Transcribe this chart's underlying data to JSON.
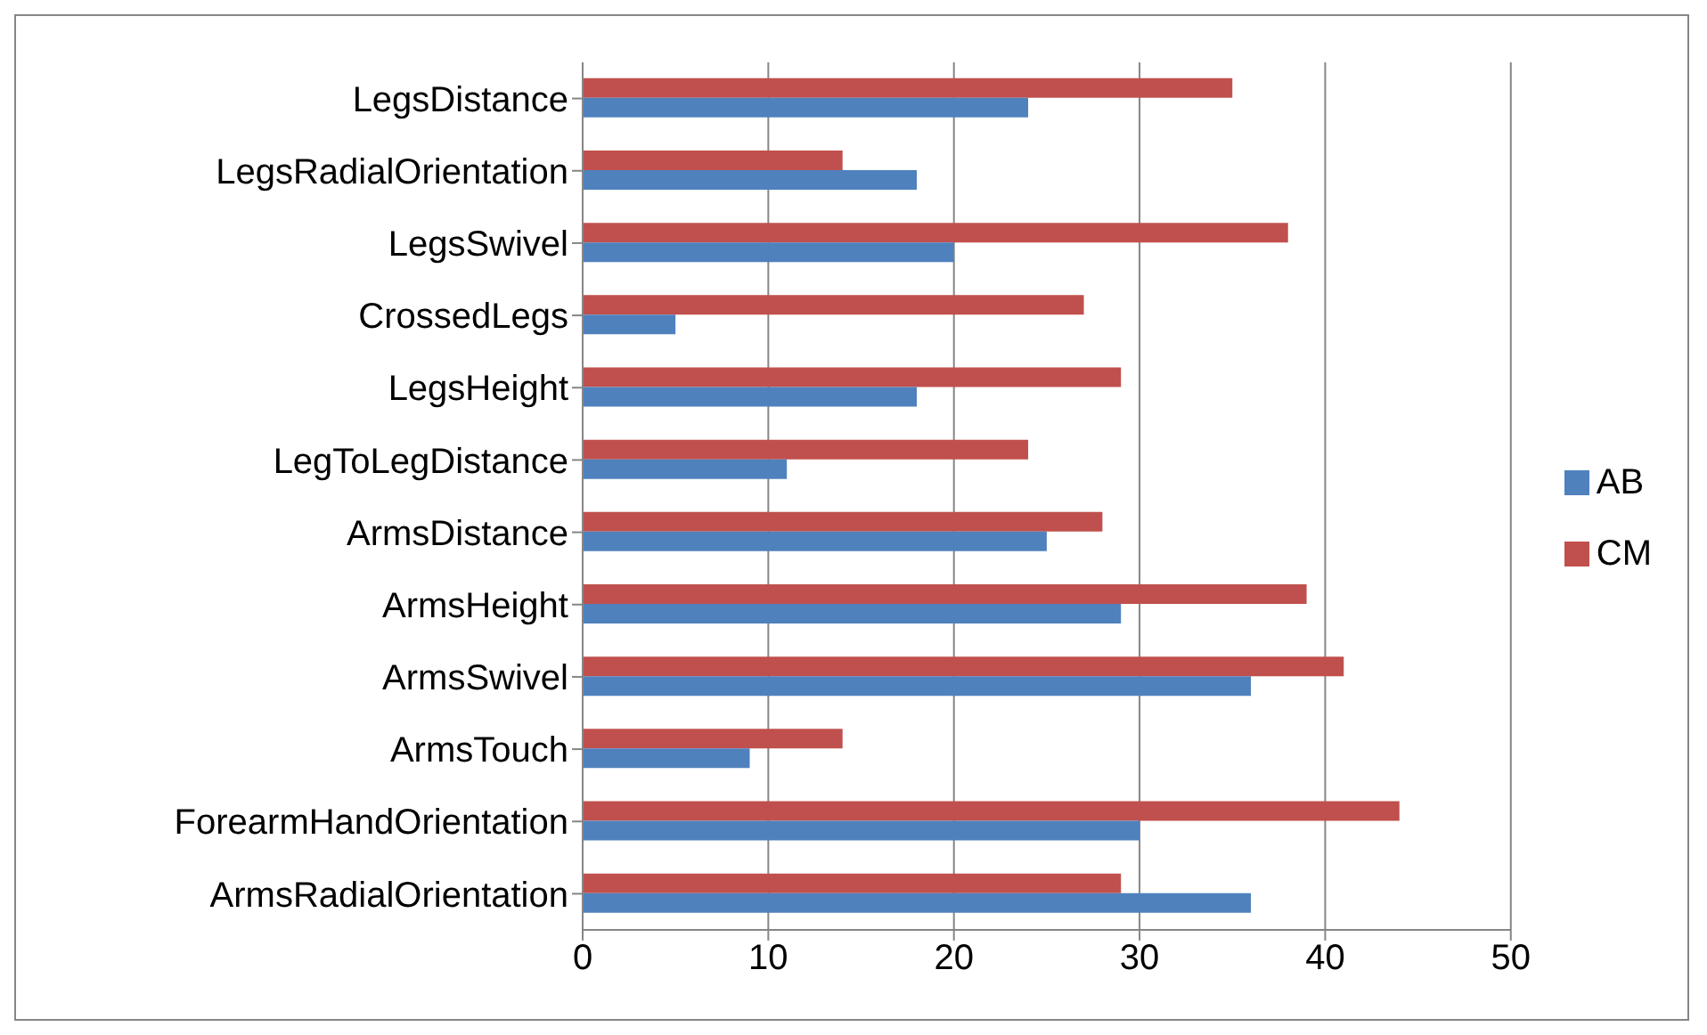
{
  "chart_data": {
    "type": "bar",
    "orientation": "horizontal",
    "categories": [
      "LegsDistance",
      "LegsRadialOrientation",
      "LegsSwivel",
      "CrossedLegs",
      "LegsHeight",
      "LegToLegDistance",
      "ArmsDistance",
      "ArmsHeight",
      "ArmsSwivel",
      "ArmsTouch",
      "ForearmHandOrientation",
      "ArmsRadialOrientation"
    ],
    "series": [
      {
        "name": "CM",
        "color": "#c0504d",
        "values": [
          35,
          14,
          38,
          27,
          29,
          24,
          28,
          39,
          41,
          14,
          44,
          29
        ]
      },
      {
        "name": "AB",
        "color": "#4f81bd",
        "values": [
          24,
          18,
          20,
          5,
          18,
          11,
          25,
          29,
          36,
          9,
          30,
          36
        ]
      }
    ],
    "xlim": [
      0,
      50
    ],
    "xticks": [
      0,
      10,
      20,
      30,
      40,
      50
    ],
    "grid": "x",
    "legend": "right"
  }
}
